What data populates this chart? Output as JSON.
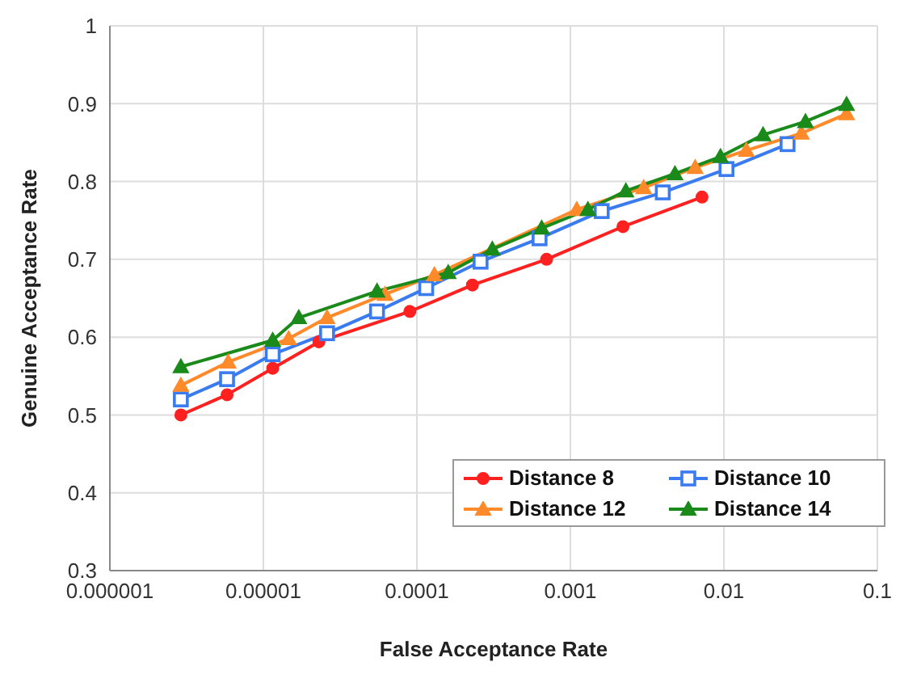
{
  "chart_data": {
    "type": "line",
    "xlabel": "False Acceptance Rate",
    "ylabel": "Genuine Acceptance Rate",
    "log": "x",
    "xlim": [
      1e-06,
      0.1
    ],
    "xticks": [
      {
        "value": 1e-06,
        "label": "0.000001"
      },
      {
        "value": 1e-05,
        "label": "0.00001"
      },
      0.0001,
      0.001,
      0.01,
      0.1
    ],
    "ylim": [
      0.3,
      1
    ],
    "yticks": [
      0.3,
      0.4,
      0.5,
      0.6,
      0.7,
      0.8,
      0.9,
      1
    ],
    "grid": true,
    "legend": "bottom right",
    "series": [
      {
        "name": "Distance 8",
        "color": "#ff2020",
        "marker": "circle",
        "x": [
          2.9e-06,
          5.8e-06,
          1.15e-05,
          2.3e-05,
          9e-05,
          0.00023,
          0.0007,
          0.0022,
          0.0072
        ],
        "values": [
          0.5,
          0.526,
          0.56,
          0.594,
          0.633,
          0.667,
          0.7,
          0.742,
          0.78
        ]
      },
      {
        "name": "Distance 10",
        "color": "#3a7bf0",
        "marker": "square",
        "x": [
          2.9e-06,
          5.8e-06,
          1.15e-05,
          2.6e-05,
          5.5e-05,
          0.000115,
          0.00026,
          0.00063,
          0.0016,
          0.004,
          0.0104,
          0.026
        ],
        "values": [
          0.52,
          0.546,
          0.578,
          0.605,
          0.633,
          0.663,
          0.697,
          0.727,
          0.762,
          0.786,
          0.816,
          0.848
        ]
      },
      {
        "name": "Distance 12",
        "color": "#ff8a2a",
        "marker": "triangle",
        "x": [
          2.9e-06,
          5.9e-06,
          1.46e-05,
          2.6e-05,
          6.2e-05,
          0.00013,
          0.00033,
          0.0011,
          0.003,
          0.0065,
          0.014,
          0.032,
          0.063
        ],
        "values": [
          0.538,
          0.568,
          0.598,
          0.625,
          0.655,
          0.68,
          null,
          0.764,
          0.792,
          0.818,
          0.84,
          0.862,
          0.887
        ]
      },
      {
        "name": "Distance 14",
        "color": "#1a8a1a",
        "marker": "triangle",
        "x": [
          2.9e-06,
          1.15e-05,
          1.7e-05,
          5.5e-05,
          0.00016,
          0.00031,
          0.00065,
          0.0013,
          0.0023,
          0.0048,
          0.0095,
          0.018,
          0.034,
          0.063
        ],
        "values": [
          0.562,
          0.596,
          0.625,
          0.659,
          0.683,
          0.713,
          0.74,
          0.764,
          0.788,
          0.81,
          0.832,
          0.86,
          0.877,
          0.899
        ]
      }
    ]
  }
}
